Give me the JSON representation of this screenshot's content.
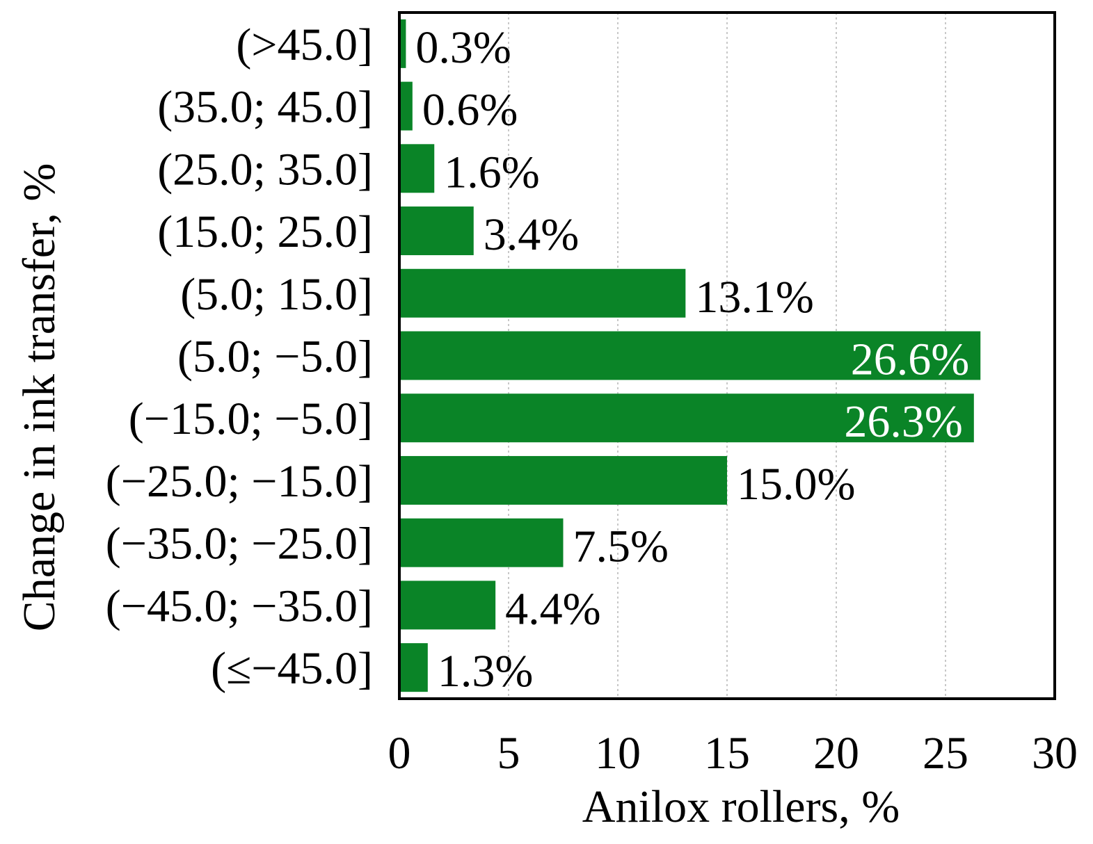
{
  "chart_data": {
    "type": "bar",
    "orientation": "horizontal",
    "categories": [
      "(>45.0]",
      "(35.0; 45.0]",
      "(25.0; 35.0]",
      "(15.0; 25.0]",
      "(5.0; 15.0]",
      "(5.0; −5.0]",
      "(−15.0; −5.0]",
      "(−25.0; −15.0]",
      "(−35.0; −25.0]",
      "(−45.0; −35.0]",
      "(≤−45.0]"
    ],
    "values": [
      0.3,
      0.6,
      1.6,
      3.4,
      13.1,
      26.6,
      26.3,
      15.0,
      7.5,
      4.4,
      1.3
    ],
    "data_labels": [
      "0.3%",
      "0.6%",
      "1.6%",
      "3.4%",
      "13.1%",
      "26.6%",
      "26.3%",
      "15.0%",
      "7.5%",
      "4.4%",
      "1.3%"
    ],
    "xlabel": "Anilox rollers, %",
    "ylabel": "Change in ink transfer, %",
    "xlim": [
      0,
      30
    ],
    "xticks": [
      0,
      5,
      10,
      15,
      20,
      25,
      30
    ],
    "grid": "vertical dotted",
    "legend": "none",
    "colors": {
      "bar": "#0a8427",
      "grid": "#c8c8c8",
      "label_inside": "#ffffff",
      "label_outside": "#000000"
    }
  }
}
